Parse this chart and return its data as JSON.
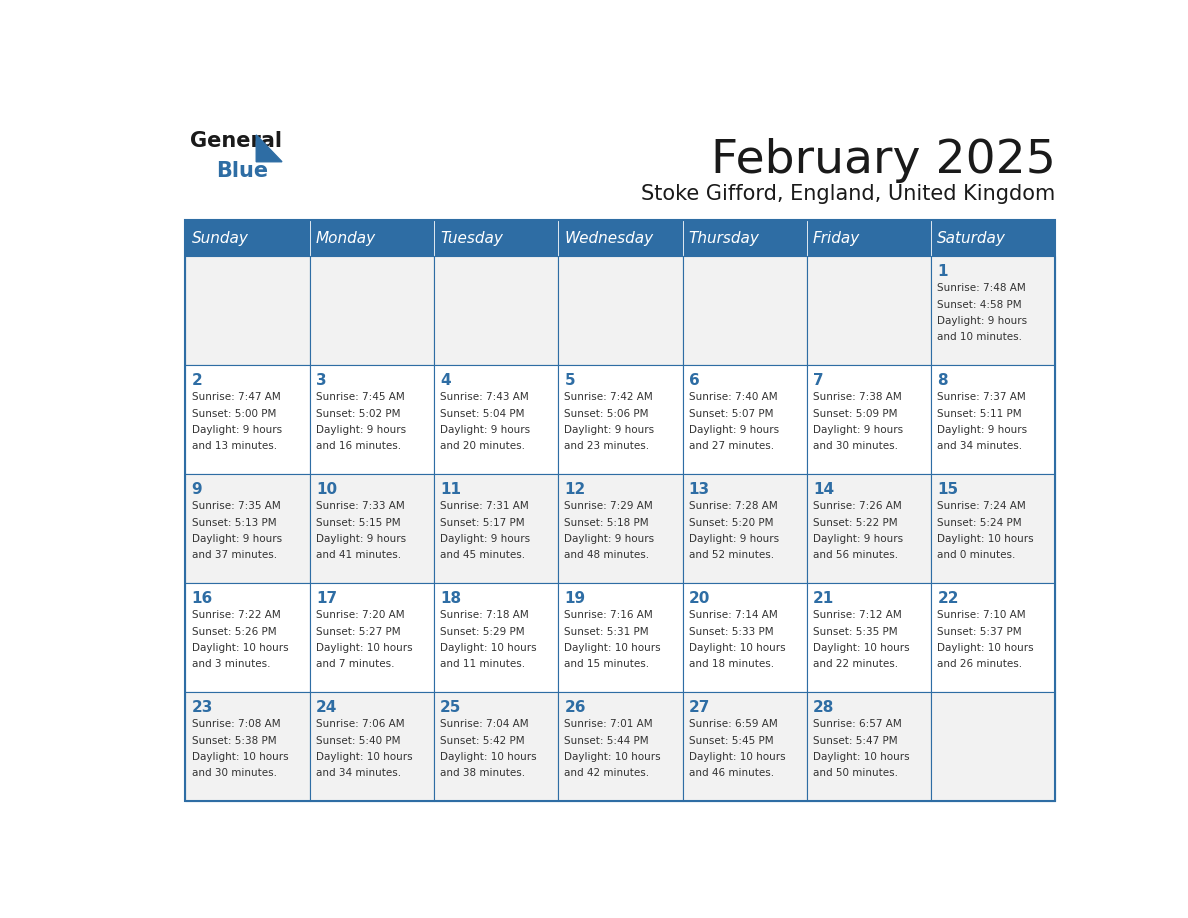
{
  "title": "February 2025",
  "subtitle": "Stoke Gifford, England, United Kingdom",
  "days_of_week": [
    "Sunday",
    "Monday",
    "Tuesday",
    "Wednesday",
    "Thursday",
    "Friday",
    "Saturday"
  ],
  "header_bg": "#2E6DA4",
  "header_text_color": "#FFFFFF",
  "cell_bg_odd": "#F2F2F2",
  "cell_bg_even": "#FFFFFF",
  "border_color": "#2E6DA4",
  "day_num_color": "#2E6DA4",
  "text_color": "#333333",
  "calendar": [
    [
      {
        "day": null,
        "sunrise": null,
        "sunset": null,
        "daylight": null
      },
      {
        "day": null,
        "sunrise": null,
        "sunset": null,
        "daylight": null
      },
      {
        "day": null,
        "sunrise": null,
        "sunset": null,
        "daylight": null
      },
      {
        "day": null,
        "sunrise": null,
        "sunset": null,
        "daylight": null
      },
      {
        "day": null,
        "sunrise": null,
        "sunset": null,
        "daylight": null
      },
      {
        "day": null,
        "sunrise": null,
        "sunset": null,
        "daylight": null
      },
      {
        "day": 1,
        "sunrise": "7:48 AM",
        "sunset": "4:58 PM",
        "daylight": "9 hours and 10 minutes."
      }
    ],
    [
      {
        "day": 2,
        "sunrise": "7:47 AM",
        "sunset": "5:00 PM",
        "daylight": "9 hours and 13 minutes."
      },
      {
        "day": 3,
        "sunrise": "7:45 AM",
        "sunset": "5:02 PM",
        "daylight": "9 hours and 16 minutes."
      },
      {
        "day": 4,
        "sunrise": "7:43 AM",
        "sunset": "5:04 PM",
        "daylight": "9 hours and 20 minutes."
      },
      {
        "day": 5,
        "sunrise": "7:42 AM",
        "sunset": "5:06 PM",
        "daylight": "9 hours and 23 minutes."
      },
      {
        "day": 6,
        "sunrise": "7:40 AM",
        "sunset": "5:07 PM",
        "daylight": "9 hours and 27 minutes."
      },
      {
        "day": 7,
        "sunrise": "7:38 AM",
        "sunset": "5:09 PM",
        "daylight": "9 hours and 30 minutes."
      },
      {
        "day": 8,
        "sunrise": "7:37 AM",
        "sunset": "5:11 PM",
        "daylight": "9 hours and 34 minutes."
      }
    ],
    [
      {
        "day": 9,
        "sunrise": "7:35 AM",
        "sunset": "5:13 PM",
        "daylight": "9 hours and 37 minutes."
      },
      {
        "day": 10,
        "sunrise": "7:33 AM",
        "sunset": "5:15 PM",
        "daylight": "9 hours and 41 minutes."
      },
      {
        "day": 11,
        "sunrise": "7:31 AM",
        "sunset": "5:17 PM",
        "daylight": "9 hours and 45 minutes."
      },
      {
        "day": 12,
        "sunrise": "7:29 AM",
        "sunset": "5:18 PM",
        "daylight": "9 hours and 48 minutes."
      },
      {
        "day": 13,
        "sunrise": "7:28 AM",
        "sunset": "5:20 PM",
        "daylight": "9 hours and 52 minutes."
      },
      {
        "day": 14,
        "sunrise": "7:26 AM",
        "sunset": "5:22 PM",
        "daylight": "9 hours and 56 minutes."
      },
      {
        "day": 15,
        "sunrise": "7:24 AM",
        "sunset": "5:24 PM",
        "daylight": "10 hours and 0 minutes."
      }
    ],
    [
      {
        "day": 16,
        "sunrise": "7:22 AM",
        "sunset": "5:26 PM",
        "daylight": "10 hours and 3 minutes."
      },
      {
        "day": 17,
        "sunrise": "7:20 AM",
        "sunset": "5:27 PM",
        "daylight": "10 hours and 7 minutes."
      },
      {
        "day": 18,
        "sunrise": "7:18 AM",
        "sunset": "5:29 PM",
        "daylight": "10 hours and 11 minutes."
      },
      {
        "day": 19,
        "sunrise": "7:16 AM",
        "sunset": "5:31 PM",
        "daylight": "10 hours and 15 minutes."
      },
      {
        "day": 20,
        "sunrise": "7:14 AM",
        "sunset": "5:33 PM",
        "daylight": "10 hours and 18 minutes."
      },
      {
        "day": 21,
        "sunrise": "7:12 AM",
        "sunset": "5:35 PM",
        "daylight": "10 hours and 22 minutes."
      },
      {
        "day": 22,
        "sunrise": "7:10 AM",
        "sunset": "5:37 PM",
        "daylight": "10 hours and 26 minutes."
      }
    ],
    [
      {
        "day": 23,
        "sunrise": "7:08 AM",
        "sunset": "5:38 PM",
        "daylight": "10 hours and 30 minutes."
      },
      {
        "day": 24,
        "sunrise": "7:06 AM",
        "sunset": "5:40 PM",
        "daylight": "10 hours and 34 minutes."
      },
      {
        "day": 25,
        "sunrise": "7:04 AM",
        "sunset": "5:42 PM",
        "daylight": "10 hours and 38 minutes."
      },
      {
        "day": 26,
        "sunrise": "7:01 AM",
        "sunset": "5:44 PM",
        "daylight": "10 hours and 42 minutes."
      },
      {
        "day": 27,
        "sunrise": "6:59 AM",
        "sunset": "5:45 PM",
        "daylight": "10 hours and 46 minutes."
      },
      {
        "day": 28,
        "sunrise": "6:57 AM",
        "sunset": "5:47 PM",
        "daylight": "10 hours and 50 minutes."
      },
      {
        "day": null,
        "sunrise": null,
        "sunset": null,
        "daylight": null
      }
    ]
  ]
}
